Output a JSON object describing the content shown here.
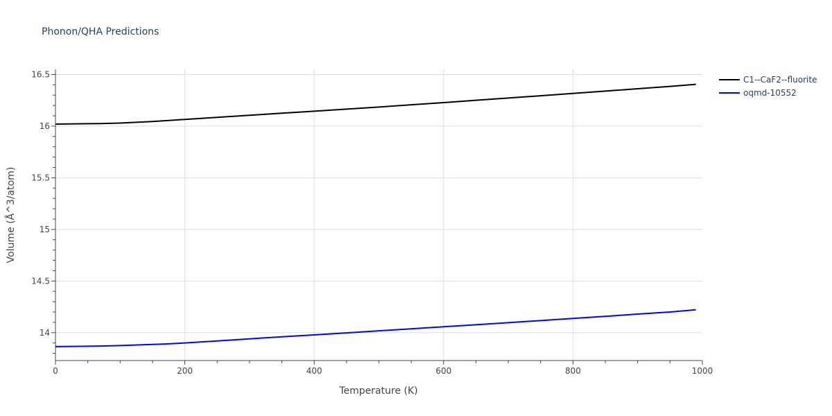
{
  "chart_data": {
    "type": "line",
    "title": "Phonon/QHA Predictions",
    "xlabel": "Temperature (K)",
    "ylabel": "Volume (Å^3/atom)",
    "xlim": [
      0,
      1000
    ],
    "ylim": [
      13.73,
      16.55
    ],
    "xticks": [
      0,
      200,
      400,
      600,
      800,
      1000
    ],
    "yticks": [
      14,
      14.5,
      15,
      15.5,
      16,
      16.5
    ],
    "ytick_labels": [
      "14",
      "14.5",
      "15",
      "15.5",
      "16",
      "16.5"
    ],
    "grid": true,
    "legend_position": "top-right",
    "series": [
      {
        "name": "C1--CaF2--fluorite",
        "color": "#000000",
        "x": [
          0,
          70,
          100,
          150,
          200,
          250,
          300,
          350,
          400,
          450,
          500,
          550,
          600,
          650,
          700,
          750,
          800,
          850,
          900,
          950,
          990
        ],
        "y": [
          16.02,
          16.025,
          16.03,
          16.045,
          16.065,
          16.085,
          16.105,
          16.125,
          16.145,
          16.165,
          16.185,
          16.207,
          16.228,
          16.25,
          16.272,
          16.294,
          16.317,
          16.339,
          16.362,
          16.385,
          16.405
        ]
      },
      {
        "name": "oqmd-10552",
        "color": "#0000ff",
        "x": [
          0,
          70,
          100,
          170,
          200,
          250,
          300,
          350,
          400,
          450,
          500,
          550,
          600,
          650,
          700,
          750,
          800,
          850,
          900,
          950,
          990
        ],
        "y": [
          13.865,
          13.87,
          13.875,
          13.89,
          13.9,
          13.92,
          13.94,
          13.96,
          13.978,
          13.998,
          14.018,
          14.037,
          14.057,
          14.077,
          14.097,
          14.117,
          14.138,
          14.158,
          14.18,
          14.2,
          14.222
        ]
      }
    ]
  }
}
